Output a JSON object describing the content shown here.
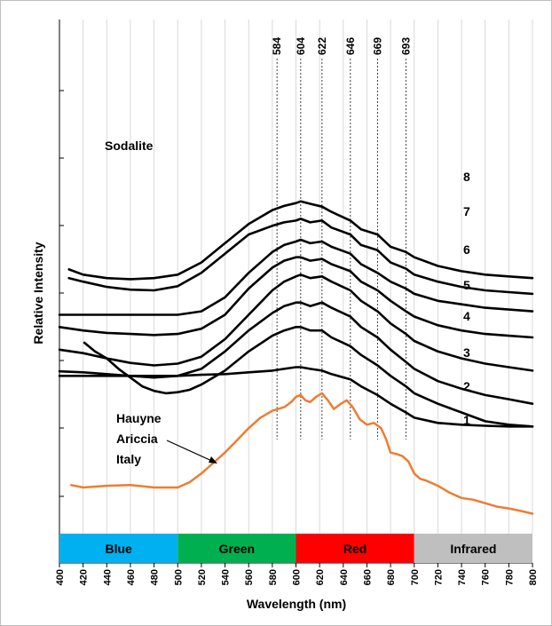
{
  "chart_data": {
    "type": "line",
    "xlabel": "Wavelength (nm)",
    "ylabel": "Relative Intensity",
    "xlim": [
      400,
      800
    ],
    "x_ticks": [
      400,
      420,
      440,
      460,
      480,
      500,
      520,
      540,
      560,
      580,
      600,
      620,
      640,
      660,
      680,
      700,
      720,
      740,
      760,
      780,
      800
    ],
    "grid": "vertical",
    "peak_markers": [
      584,
      604,
      622,
      646,
      669,
      693
    ],
    "bands": [
      {
        "label": "Blue",
        "from": 400,
        "to": 500,
        "color": "#00b0f0"
      },
      {
        "label": "Green",
        "from": 500,
        "to": 600,
        "color": "#00b050"
      },
      {
        "label": "Red",
        "from": 600,
        "to": 700,
        "color": "#ff0000"
      },
      {
        "label": "Infrared",
        "from": 700,
        "to": 800,
        "color": "#bfbfbf"
      }
    ],
    "annotations": [
      {
        "text": "Sodalite"
      },
      {
        "text": "Hauyne",
        "line": 1
      },
      {
        "text": "Ariccia",
        "line": 2
      },
      {
        "text": "Italy",
        "line": 3
      }
    ],
    "series": [
      {
        "label": "8",
        "color": "#000000",
        "x": [
          408,
          420,
          440,
          460,
          480,
          500,
          520,
          540,
          560,
          580,
          590,
          600,
          604,
          612,
          622,
          630,
          646,
          655,
          669,
          680,
          693,
          700,
          720,
          740,
          760,
          780,
          800
        ],
        "y": [
          6.3,
          6.15,
          6.05,
          6.02,
          6.05,
          6.15,
          6.5,
          7.05,
          7.6,
          8.0,
          8.12,
          8.2,
          8.25,
          8.18,
          8.1,
          7.95,
          7.7,
          7.45,
          7.3,
          6.95,
          6.8,
          6.65,
          6.4,
          6.25,
          6.15,
          6.1,
          6.05
        ]
      },
      {
        "label": "7",
        "color": "#000000",
        "x": [
          408,
          420,
          440,
          460,
          480,
          500,
          520,
          540,
          560,
          580,
          590,
          600,
          604,
          612,
          622,
          630,
          646,
          655,
          669,
          680,
          693,
          700,
          720,
          740,
          760,
          780,
          800
        ],
        "y": [
          6.05,
          5.95,
          5.8,
          5.72,
          5.7,
          5.82,
          6.2,
          6.75,
          7.3,
          7.55,
          7.65,
          7.7,
          7.75,
          7.65,
          7.7,
          7.5,
          7.3,
          7.0,
          6.85,
          6.5,
          6.32,
          6.15,
          5.95,
          5.8,
          5.7,
          5.65,
          5.6
        ]
      },
      {
        "label": "6",
        "color": "#000000",
        "x": [
          400,
          420,
          440,
          460,
          480,
          500,
          520,
          540,
          560,
          580,
          590,
          600,
          604,
          612,
          622,
          630,
          646,
          655,
          669,
          680,
          693,
          700,
          720,
          740,
          760,
          780,
          800
        ],
        "y": [
          5.0,
          5.0,
          5.0,
          5.0,
          5.0,
          5.0,
          5.1,
          5.5,
          6.2,
          6.8,
          7.0,
          7.1,
          7.15,
          7.05,
          7.1,
          6.95,
          6.75,
          6.45,
          6.2,
          5.95,
          5.75,
          5.6,
          5.4,
          5.3,
          5.2,
          5.15,
          5.1
        ]
      },
      {
        "label": "5",
        "color": "#000000",
        "x": [
          400,
          420,
          440,
          460,
          480,
          500,
          520,
          540,
          560,
          580,
          590,
          600,
          604,
          612,
          622,
          630,
          646,
          655,
          669,
          680,
          693,
          700,
          720,
          740,
          760,
          780,
          800
        ],
        "y": [
          4.65,
          4.55,
          4.48,
          4.45,
          4.42,
          4.45,
          4.6,
          5.0,
          5.75,
          6.35,
          6.55,
          6.65,
          6.65,
          6.55,
          6.6,
          6.45,
          6.25,
          5.95,
          5.7,
          5.4,
          5.1,
          4.95,
          4.7,
          4.55,
          4.45,
          4.4,
          4.35
        ]
      },
      {
        "label": "4",
        "color": "#000000",
        "x": [
          400,
          420,
          440,
          460,
          480,
          500,
          520,
          540,
          560,
          580,
          590,
          600,
          604,
          612,
          622,
          630,
          646,
          655,
          669,
          680,
          693,
          700,
          720,
          740,
          760,
          780,
          800
        ],
        "y": [
          4.0,
          3.9,
          3.75,
          3.62,
          3.55,
          3.6,
          3.8,
          4.3,
          5.0,
          5.7,
          5.95,
          6.1,
          6.15,
          6.05,
          6.1,
          5.95,
          5.7,
          5.4,
          5.1,
          4.75,
          4.45,
          4.25,
          3.95,
          3.75,
          3.6,
          3.5,
          3.4
        ]
      },
      {
        "label": "3",
        "color": "#000000",
        "x": [
          400,
          420,
          440,
          460,
          480,
          500,
          520,
          540,
          560,
          580,
          590,
          600,
          604,
          612,
          622,
          630,
          646,
          655,
          669,
          680,
          693,
          700,
          720,
          740,
          760,
          780,
          800
        ],
        "y": [
          3.38,
          3.35,
          3.3,
          3.25,
          3.2,
          3.25,
          3.45,
          3.95,
          4.55,
          5.05,
          5.25,
          5.35,
          5.35,
          5.25,
          5.35,
          5.2,
          4.95,
          4.65,
          4.35,
          4.0,
          3.65,
          3.45,
          3.1,
          2.88,
          2.7,
          2.58,
          2.45
        ]
      },
      {
        "label": "2",
        "color": "#000000",
        "x": [
          421,
          430,
          440,
          450,
          460,
          470,
          480,
          490,
          500,
          510,
          520,
          540,
          560,
          580,
          590,
          600,
          604,
          612,
          622,
          630,
          646,
          655,
          669,
          680,
          693,
          700,
          720,
          740,
          760,
          780,
          800
        ],
        "y": [
          4.2,
          3.95,
          3.75,
          3.45,
          3.2,
          2.95,
          2.82,
          2.75,
          2.78,
          2.85,
          3.0,
          3.4,
          3.95,
          4.4,
          4.55,
          4.65,
          4.65,
          4.55,
          4.55,
          4.35,
          4.1,
          3.85,
          3.55,
          3.25,
          2.95,
          2.75,
          2.45,
          2.2,
          1.95,
          1.85,
          1.8
        ]
      },
      {
        "label": "1",
        "color": "#000000",
        "x": [
          400,
          420,
          440,
          460,
          480,
          500,
          520,
          540,
          560,
          580,
          590,
          600,
          604,
          612,
          622,
          630,
          646,
          655,
          669,
          680,
          693,
          700,
          720,
          740,
          760,
          780,
          800
        ],
        "y": [
          3.25,
          3.25,
          3.25,
          3.25,
          3.25,
          3.25,
          3.28,
          3.3,
          3.35,
          3.4,
          3.45,
          3.5,
          3.5,
          3.45,
          3.4,
          3.3,
          3.15,
          2.95,
          2.7,
          2.45,
          2.2,
          2.05,
          1.9,
          1.85,
          1.82,
          1.8,
          1.8
        ]
      },
      {
        "label": "",
        "color": "#ed7d31",
        "x": [
          410,
          420,
          440,
          460,
          480,
          500,
          510,
          520,
          530,
          540,
          550,
          560,
          570,
          580,
          590,
          596,
          600,
          604,
          608,
          612,
          617,
          622,
          627,
          632,
          638,
          643,
          648,
          654,
          660,
          666,
          672,
          676,
          680,
          686,
          690,
          695,
          700,
          705,
          710,
          720,
          730,
          740,
          750,
          760,
          770,
          780,
          790,
          800
        ],
        "y": [
          0.12,
          0.05,
          0.1,
          0.12,
          0.05,
          0.05,
          0.2,
          0.45,
          0.75,
          1.05,
          1.4,
          1.75,
          2.05,
          2.25,
          2.35,
          2.5,
          2.65,
          2.7,
          2.55,
          2.5,
          2.65,
          2.75,
          2.55,
          2.3,
          2.45,
          2.55,
          2.35,
          2.0,
          1.85,
          1.9,
          1.75,
          1.45,
          1.05,
          1.0,
          0.95,
          0.8,
          0.45,
          0.3,
          0.25,
          0.1,
          -0.1,
          -0.25,
          -0.3,
          -0.4,
          -0.5,
          -0.55,
          -0.62,
          -0.7
        ]
      }
    ]
  }
}
